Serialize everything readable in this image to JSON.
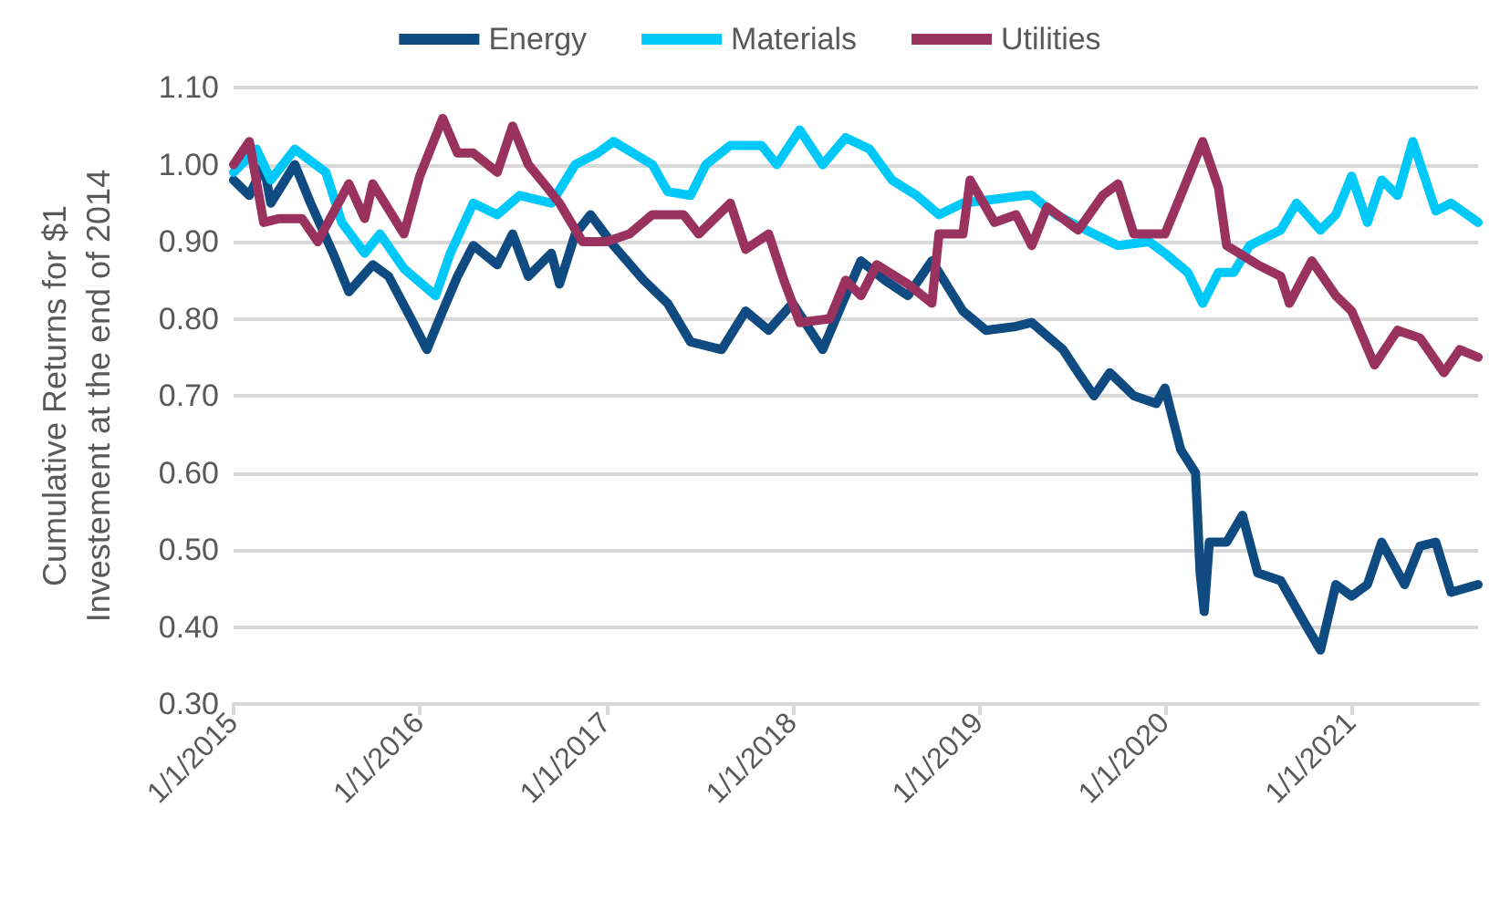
{
  "chart_data": {
    "type": "line",
    "ylabel": "Cumulative Returns for $1\nInvestement at the end of 2014",
    "xlim": [
      "2015-01-01",
      "2021-09-06"
    ],
    "xticks": [
      {
        "value": "2015-01-01",
        "label": "1/1/2015"
      },
      {
        "value": "2016-01-01",
        "label": "1/1/2016"
      },
      {
        "value": "2017-01-01",
        "label": "1/1/2017"
      },
      {
        "value": "2018-01-01",
        "label": "1/1/2018"
      },
      {
        "value": "2019-01-01",
        "label": "1/1/2019"
      },
      {
        "value": "2020-01-01",
        "label": "1/1/2020"
      },
      {
        "value": "2021-01-01",
        "label": "1/1/2021"
      }
    ],
    "ylim": [
      0.3,
      1.1
    ],
    "yticks": [
      {
        "value": 0.3,
        "label": "0.30"
      },
      {
        "value": 0.4,
        "label": "0.40"
      },
      {
        "value": 0.5,
        "label": "0.50"
      },
      {
        "value": 0.6,
        "label": "0.60"
      },
      {
        "value": 0.7,
        "label": "0.70"
      },
      {
        "value": 0.8,
        "label": "0.80"
      },
      {
        "value": 0.9,
        "label": "0.90"
      },
      {
        "value": 1.0,
        "label": "1.00"
      },
      {
        "value": 1.1,
        "label": "1.10"
      }
    ],
    "grid": "y",
    "legend": "top",
    "marker": "none",
    "line_style": "solid",
    "series": [
      {
        "name": "Energy",
        "color": "#0f4a80",
        "x": [
          "2015-01-01",
          "2015-02-01",
          "2015-03-01",
          "2015-03-15",
          "2015-05-01",
          "2015-06-01",
          "2015-07-15",
          "2015-08-15",
          "2015-10-01",
          "2015-11-01",
          "2015-12-15",
          "2016-01-15",
          "2016-02-15",
          "2016-03-15",
          "2016-04-15",
          "2016-06-01",
          "2016-07-01",
          "2016-08-01",
          "2016-09-15",
          "2016-10-01",
          "2016-11-01",
          "2016-12-01",
          "2017-01-15",
          "2017-03-15",
          "2017-05-01",
          "2017-06-15",
          "2017-08-15",
          "2017-10-01",
          "2017-11-15",
          "2018-01-01",
          "2018-03-01",
          "2018-04-15",
          "2018-05-15",
          "2018-07-01",
          "2018-08-15",
          "2018-10-01",
          "2018-12-01",
          "2019-01-15",
          "2019-03-15",
          "2019-04-15",
          "2019-06-15",
          "2019-07-15",
          "2019-08-15",
          "2019-09-15",
          "2019-11-01",
          "2019-12-15",
          "2020-01-01",
          "2020-02-01",
          "2020-03-01",
          "2020-03-10",
          "2020-03-18",
          "2020-03-28",
          "2020-05-01",
          "2020-06-01",
          "2020-07-01",
          "2020-08-15",
          "2020-10-01",
          "2020-11-01",
          "2020-12-01",
          "2021-01-01",
          "2021-02-01",
          "2021-03-01",
          "2021-04-15",
          "2021-05-15",
          "2021-06-15",
          "2021-07-15",
          "2021-09-06"
        ],
        "values": [
          0.98,
          0.96,
          1.0,
          0.95,
          1.0,
          0.95,
          0.885,
          0.835,
          0.87,
          0.855,
          0.8,
          0.76,
          0.81,
          0.855,
          0.895,
          0.87,
          0.91,
          0.855,
          0.885,
          0.845,
          0.91,
          0.935,
          0.895,
          0.85,
          0.82,
          0.77,
          0.76,
          0.81,
          0.785,
          0.82,
          0.76,
          0.83,
          0.875,
          0.85,
          0.83,
          0.875,
          0.81,
          0.785,
          0.79,
          0.795,
          0.76,
          0.73,
          0.7,
          0.73,
          0.7,
          0.69,
          0.71,
          0.63,
          0.6,
          0.47,
          0.42,
          0.51,
          0.51,
          0.545,
          0.47,
          0.46,
          0.405,
          0.37,
          0.455,
          0.44,
          0.455,
          0.51,
          0.455,
          0.505,
          0.51,
          0.445,
          0.455
        ]
      },
      {
        "name": "Materials",
        "color": "#00c8f8",
        "x": [
          "2015-01-01",
          "2015-02-15",
          "2015-03-15",
          "2015-05-01",
          "2015-07-01",
          "2015-08-01",
          "2015-09-15",
          "2015-10-15",
          "2015-12-01",
          "2016-02-01",
          "2016-03-01",
          "2016-04-15",
          "2016-06-01",
          "2016-07-15",
          "2016-09-15",
          "2016-11-01",
          "2016-12-15",
          "2017-01-15",
          "2017-04-01",
          "2017-05-01",
          "2017-06-15",
          "2017-07-15",
          "2017-09-01",
          "2017-11-01",
          "2017-12-01",
          "2018-01-15",
          "2018-03-01",
          "2018-04-15",
          "2018-06-01",
          "2018-07-15",
          "2018-09-01",
          "2018-10-15",
          "2018-12-01",
          "2019-02-01",
          "2019-04-01",
          "2019-04-15",
          "2019-06-01",
          "2019-08-15",
          "2019-10-01",
          "2019-12-01",
          "2020-01-01",
          "2020-02-15",
          "2020-03-15",
          "2020-04-15",
          "2020-05-15",
          "2020-06-15",
          "2020-08-15",
          "2020-09-15",
          "2020-11-01",
          "2020-12-01",
          "2021-01-01",
          "2021-02-01",
          "2021-03-01",
          "2021-04-01",
          "2021-05-01",
          "2021-06-15",
          "2021-07-15",
          "2021-09-06"
        ],
        "values": [
          0.99,
          1.02,
          0.98,
          1.02,
          0.99,
          0.925,
          0.885,
          0.91,
          0.865,
          0.83,
          0.885,
          0.95,
          0.935,
          0.96,
          0.95,
          1.0,
          1.015,
          1.03,
          1.0,
          0.965,
          0.96,
          1.0,
          1.025,
          1.025,
          1.0,
          1.045,
          1.0,
          1.035,
          1.02,
          0.98,
          0.96,
          0.935,
          0.95,
          0.955,
          0.96,
          0.96,
          0.935,
          0.91,
          0.895,
          0.9,
          0.885,
          0.86,
          0.82,
          0.86,
          0.86,
          0.895,
          0.915,
          0.95,
          0.915,
          0.935,
          0.985,
          0.925,
          0.98,
          0.96,
          1.03,
          0.94,
          0.95,
          0.925
        ]
      },
      {
        "name": "Utilities",
        "color": "#99325f",
        "x": [
          "2015-01-01",
          "2015-02-01",
          "2015-03-01",
          "2015-04-01",
          "2015-05-15",
          "2015-06-15",
          "2015-08-15",
          "2015-09-15",
          "2015-10-01",
          "2015-12-01",
          "2016-01-01",
          "2016-02-15",
          "2016-03-15",
          "2016-04-15",
          "2016-06-01",
          "2016-07-01",
          "2016-08-01",
          "2016-09-01",
          "2016-10-01",
          "2016-11-15",
          "2017-01-01",
          "2017-02-15",
          "2017-04-01",
          "2017-06-01",
          "2017-07-01",
          "2017-09-01",
          "2017-10-01",
          "2017-11-15",
          "2017-12-15",
          "2018-01-15",
          "2018-03-15",
          "2018-04-15",
          "2018-05-15",
          "2018-06-15",
          "2018-08-15",
          "2018-10-01",
          "2018-10-15",
          "2018-12-01",
          "2018-12-15",
          "2019-02-01",
          "2019-03-15",
          "2019-04-15",
          "2019-05-15",
          "2019-07-15",
          "2019-09-01",
          "2019-10-01",
          "2019-11-01",
          "2020-01-01",
          "2020-02-01",
          "2020-03-15",
          "2020-04-15",
          "2020-05-01",
          "2020-07-01",
          "2020-08-15",
          "2020-09-01",
          "2020-10-15",
          "2020-12-01",
          "2021-01-01",
          "2021-02-15",
          "2021-04-01",
          "2021-05-15",
          "2021-07-01",
          "2021-08-01",
          "2021-09-06"
        ],
        "values": [
          1.0,
          1.03,
          0.925,
          0.93,
          0.93,
          0.9,
          0.975,
          0.93,
          0.975,
          0.91,
          0.985,
          1.06,
          1.015,
          1.015,
          0.99,
          1.05,
          1.0,
          0.975,
          0.95,
          0.9,
          0.9,
          0.91,
          0.935,
          0.935,
          0.91,
          0.95,
          0.89,
          0.91,
          0.85,
          0.795,
          0.8,
          0.85,
          0.83,
          0.87,
          0.845,
          0.82,
          0.91,
          0.91,
          0.98,
          0.925,
          0.935,
          0.895,
          0.945,
          0.915,
          0.96,
          0.975,
          0.91,
          0.91,
          0.96,
          1.03,
          0.97,
          0.895,
          0.87,
          0.855,
          0.82,
          0.875,
          0.83,
          0.81,
          0.74,
          0.785,
          0.775,
          0.73,
          0.76,
          0.75
        ]
      }
    ]
  }
}
